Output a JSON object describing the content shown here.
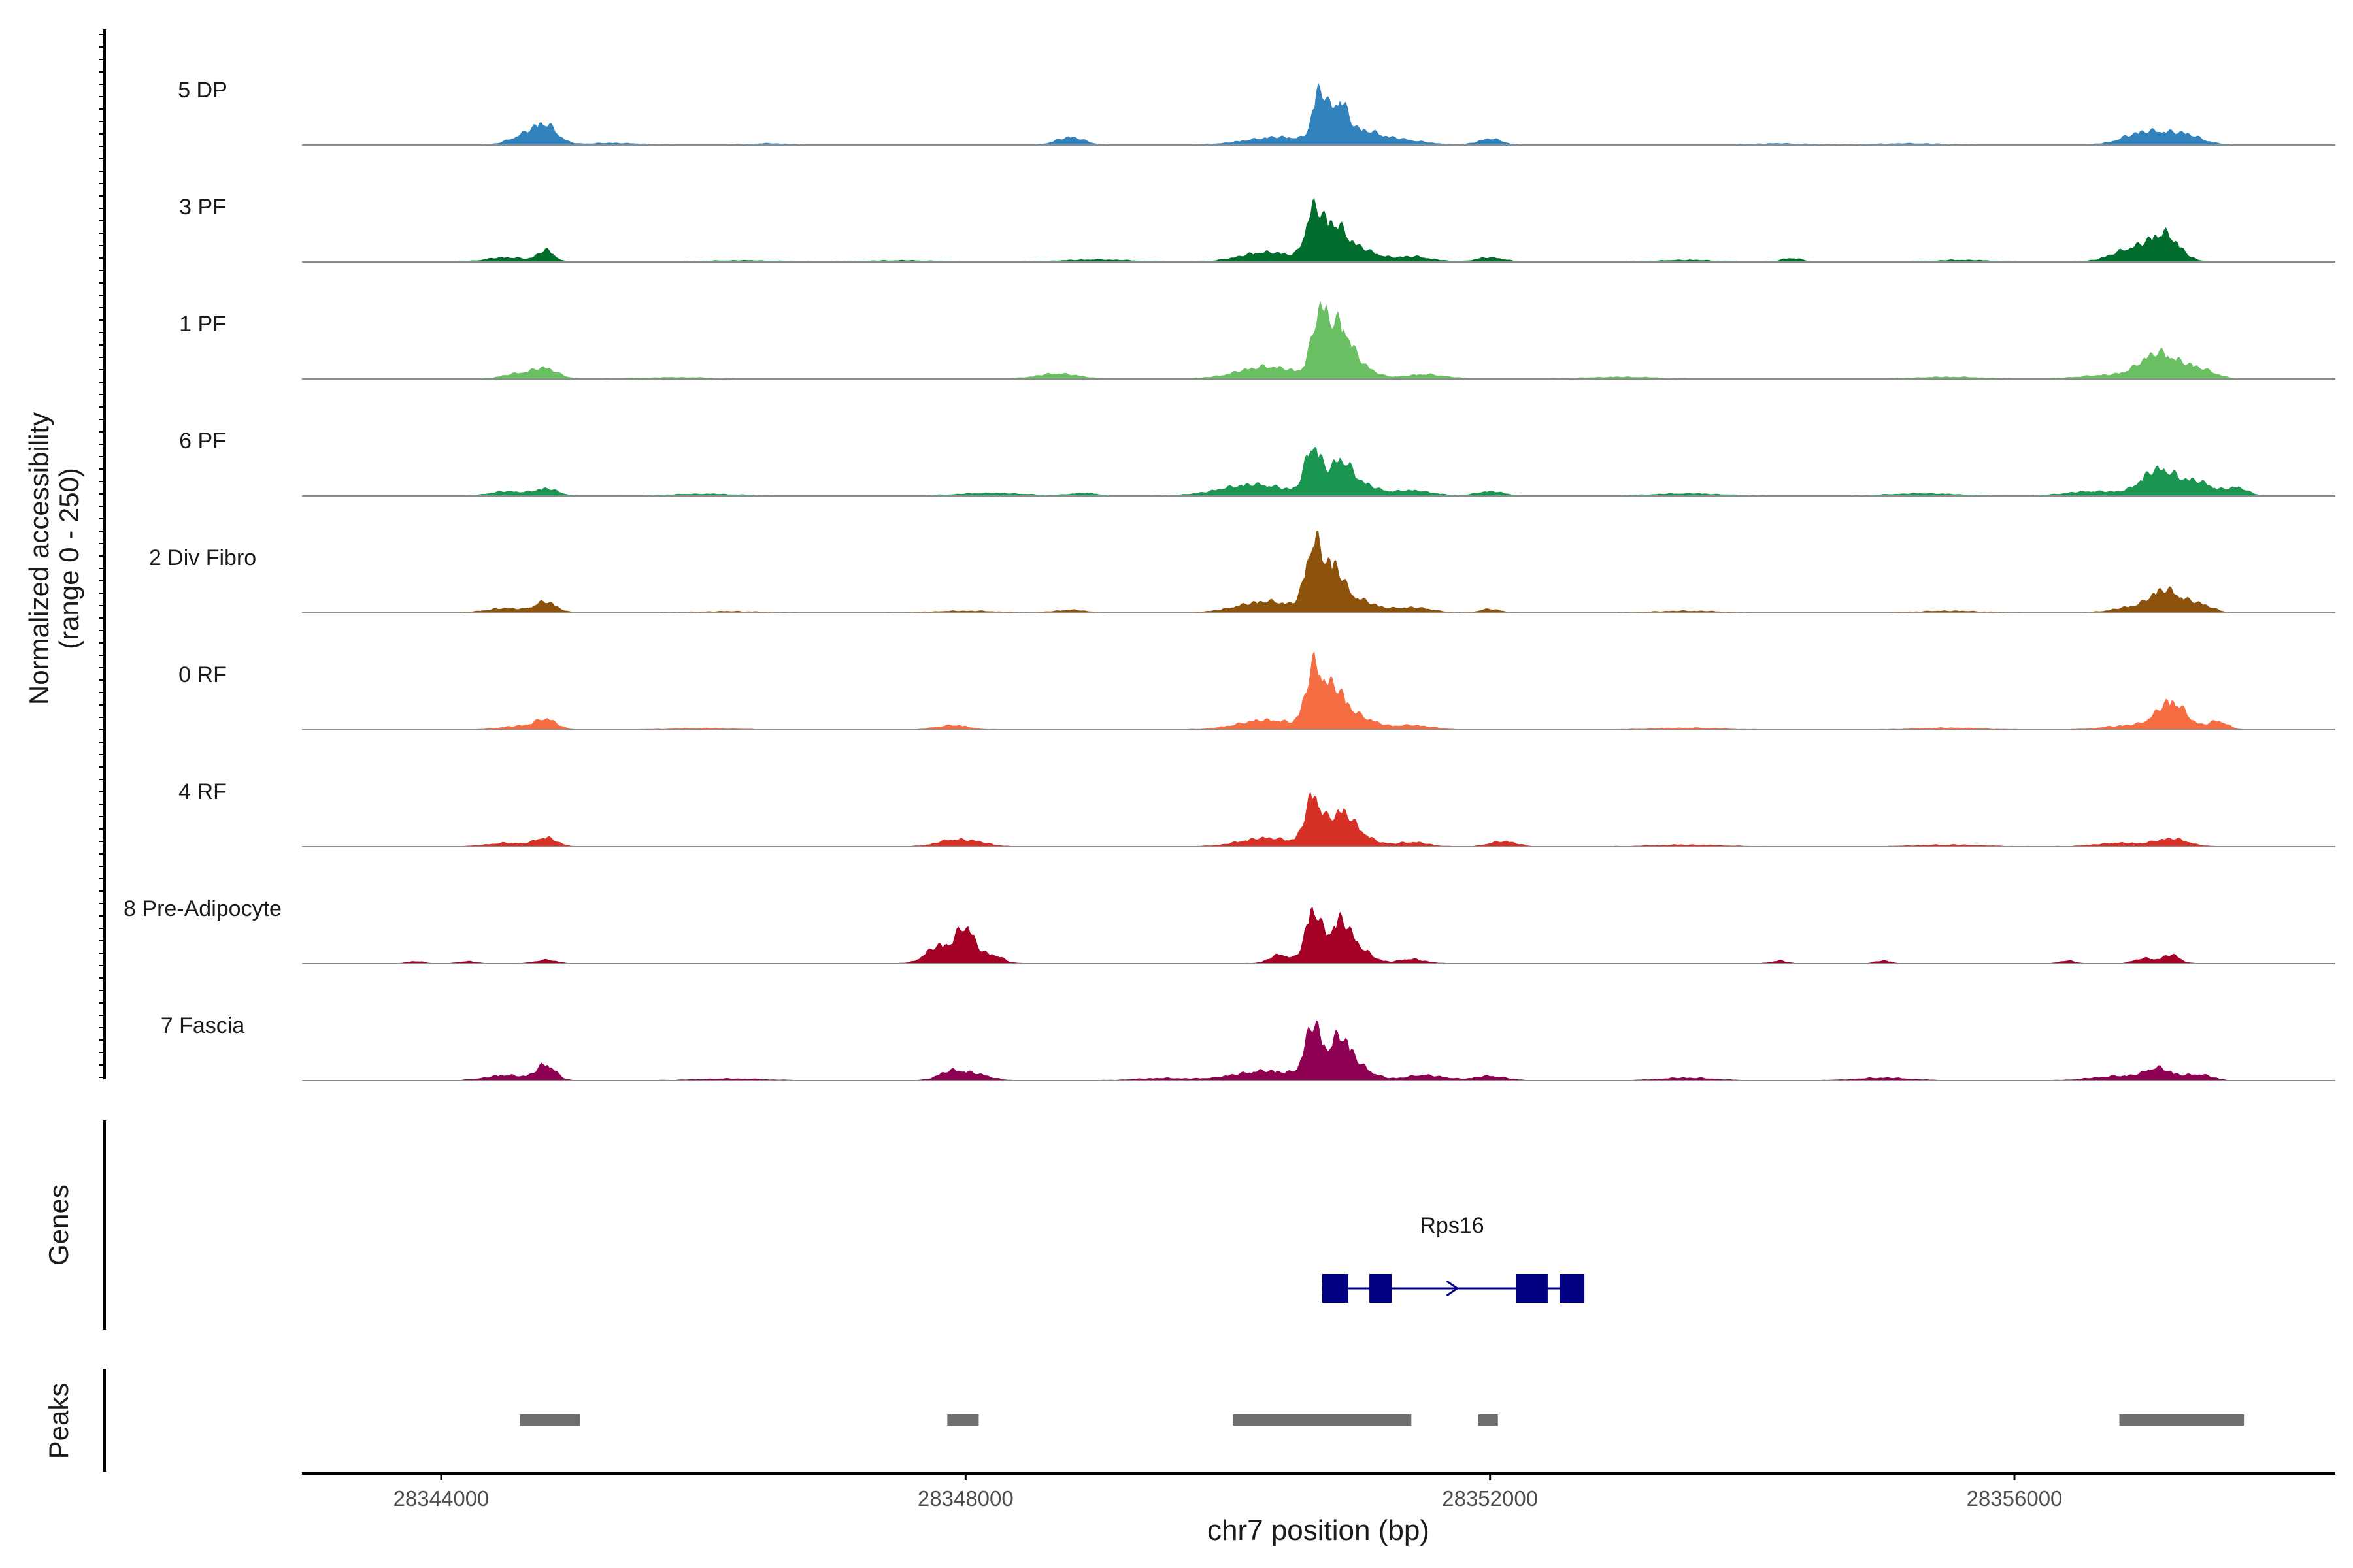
{
  "chart_data": {
    "type": "area",
    "title": "",
    "xlabel": "chr7 position (bp)",
    "ylabel": [
      "Normalized accessibility",
      "(range 0 - 250)"
    ],
    "xlim": [
      28343000,
      28358500
    ],
    "ylim": [
      0,
      250
    ],
    "x_ticks": [
      {
        "value": 28344000,
        "label": "28344000"
      },
      {
        "value": 28348000,
        "label": "28348000"
      },
      {
        "value": 28352000,
        "label": "28352000"
      },
      {
        "value": 28356000,
        "label": "28356000"
      }
    ],
    "data_range": [
      28343100,
      28357900
    ],
    "series": [
      {
        "name": "5 DP",
        "color": "#3282BD",
        "peaks": [
          [
            28344650,
            22,
            120
          ],
          [
            28344800,
            38,
            90
          ],
          [
            28345300,
            4,
            200
          ],
          [
            28346500,
            3,
            150
          ],
          [
            28348800,
            18,
            100
          ],
          [
            28350400,
            18,
            250
          ],
          [
            28350700,
            118,
            50
          ],
          [
            28350850,
            82,
            60
          ],
          [
            28351000,
            30,
            140
          ],
          [
            28351300,
            12,
            180
          ],
          [
            28352000,
            14,
            90
          ],
          [
            28354200,
            3,
            200
          ],
          [
            28355200,
            3,
            250
          ],
          [
            28357000,
            30,
            160
          ],
          [
            28357300,
            22,
            130
          ]
        ]
      },
      {
        "name": "3 PF",
        "color": "#006D2C",
        "peaks": [
          [
            28344500,
            10,
            150
          ],
          [
            28344800,
            26,
            60
          ],
          [
            28346300,
            3,
            250
          ],
          [
            28347500,
            3,
            250
          ],
          [
            28349000,
            5,
            250
          ],
          [
            28350300,
            22,
            200
          ],
          [
            28350650,
            100,
            60
          ],
          [
            28350800,
            80,
            90
          ],
          [
            28351000,
            30,
            120
          ],
          [
            28351400,
            12,
            150
          ],
          [
            28352000,
            10,
            100
          ],
          [
            28353500,
            4,
            200
          ],
          [
            28354300,
            8,
            80
          ],
          [
            28355600,
            4,
            200
          ],
          [
            28356900,
            30,
            150
          ],
          [
            28357150,
            58,
            110
          ]
        ]
      },
      {
        "name": "1 PF",
        "color": "#6BBF63",
        "peaks": [
          [
            28344600,
            12,
            120
          ],
          [
            28344800,
            22,
            90
          ],
          [
            28345800,
            3,
            250
          ],
          [
            28348700,
            12,
            150
          ],
          [
            28350300,
            28,
            220
          ],
          [
            28350700,
            140,
            60
          ],
          [
            28350850,
            110,
            80
          ],
          [
            28351000,
            30,
            110
          ],
          [
            28351500,
            10,
            150
          ],
          [
            28353000,
            4,
            250
          ],
          [
            28355500,
            4,
            250
          ],
          [
            28356700,
            8,
            200
          ],
          [
            28357100,
            58,
            140
          ],
          [
            28357400,
            22,
            120
          ]
        ]
      },
      {
        "name": "6 PF",
        "color": "#1A9650",
        "peaks": [
          [
            28344500,
            10,
            120
          ],
          [
            28344800,
            16,
            90
          ],
          [
            28346000,
            4,
            250
          ],
          [
            28348200,
            6,
            250
          ],
          [
            28348900,
            6,
            100
          ],
          [
            28350200,
            26,
            250
          ],
          [
            28350650,
            110,
            60
          ],
          [
            28350850,
            70,
            80
          ],
          [
            28351000,
            28,
            120
          ],
          [
            28351400,
            12,
            150
          ],
          [
            28352000,
            10,
            100
          ],
          [
            28353500,
            5,
            250
          ],
          [
            28355300,
            5,
            250
          ],
          [
            28356600,
            10,
            200
          ],
          [
            28357100,
            60,
            130
          ],
          [
            28357400,
            30,
            120
          ],
          [
            28357700,
            18,
            80
          ]
        ]
      },
      {
        "name": "2 Div Fibro",
        "color": "#8C510A",
        "peaks": [
          [
            28344500,
            10,
            150
          ],
          [
            28344800,
            24,
            80
          ],
          [
            28346200,
            3,
            250
          ],
          [
            28348000,
            4,
            250
          ],
          [
            28348800,
            6,
            120
          ],
          [
            28350300,
            26,
            220
          ],
          [
            28350650,
            140,
            60
          ],
          [
            28350800,
            100,
            80
          ],
          [
            28351000,
            28,
            120
          ],
          [
            28351400,
            12,
            150
          ],
          [
            28352000,
            8,
            80
          ],
          [
            28353500,
            4,
            250
          ],
          [
            28355500,
            4,
            250
          ],
          [
            28356900,
            12,
            150
          ],
          [
            28357150,
            50,
            110
          ],
          [
            28357400,
            20,
            100
          ]
        ]
      },
      {
        "name": "0 RF",
        "color": "#F46D43",
        "peaks": [
          [
            28344600,
            8,
            150
          ],
          [
            28344800,
            22,
            80
          ],
          [
            28346000,
            3,
            250
          ],
          [
            28347900,
            10,
            120
          ],
          [
            28350300,
            22,
            220
          ],
          [
            28350650,
            120,
            60
          ],
          [
            28350800,
            90,
            90
          ],
          [
            28351000,
            28,
            120
          ],
          [
            28351400,
            10,
            150
          ],
          [
            28353500,
            4,
            250
          ],
          [
            28355500,
            4,
            250
          ],
          [
            28356900,
            10,
            200
          ],
          [
            28357200,
            62,
            110
          ],
          [
            28357550,
            20,
            70
          ]
        ]
      },
      {
        "name": "4 RF",
        "color": "#D73027",
        "peaks": [
          [
            28344500,
            8,
            150
          ],
          [
            28344800,
            20,
            80
          ],
          [
            28347900,
            15,
            120
          ],
          [
            28348100,
            8,
            100
          ],
          [
            28350300,
            20,
            200
          ],
          [
            28350650,
            110,
            60
          ],
          [
            28350850,
            70,
            90
          ],
          [
            28351000,
            26,
            110
          ],
          [
            28351400,
            10,
            120
          ],
          [
            28352100,
            12,
            100
          ],
          [
            28353500,
            4,
            250
          ],
          [
            28355500,
            4,
            250
          ],
          [
            28356800,
            8,
            180
          ],
          [
            28357200,
            18,
            120
          ]
        ]
      },
      {
        "name": "8 Pre-Adipocyte",
        "color": "#A50026",
        "peaks": [
          [
            28343800,
            5,
            60
          ],
          [
            28344200,
            5,
            60
          ],
          [
            28344800,
            8,
            80
          ],
          [
            28347800,
            40,
            100
          ],
          [
            28348000,
            80,
            70
          ],
          [
            28348200,
            20,
            80
          ],
          [
            28350400,
            20,
            80
          ],
          [
            28350650,
            120,
            60
          ],
          [
            28350850,
            90,
            80
          ],
          [
            28351000,
            30,
            100
          ],
          [
            28351400,
            10,
            100
          ],
          [
            28354200,
            6,
            60
          ],
          [
            28355000,
            6,
            60
          ],
          [
            28356400,
            6,
            60
          ],
          [
            28357000,
            12,
            80
          ],
          [
            28357200,
            20,
            60
          ]
        ]
      },
      {
        "name": "7 Fascia",
        "color": "#8E0152",
        "peaks": [
          [
            28344500,
            12,
            150
          ],
          [
            28344800,
            36,
            70
          ],
          [
            28346200,
            4,
            250
          ],
          [
            28347900,
            22,
            100
          ],
          [
            28348100,
            12,
            100
          ],
          [
            28349500,
            5,
            200
          ],
          [
            28350300,
            22,
            250
          ],
          [
            28350650,
            120,
            60
          ],
          [
            28350850,
            90,
            80
          ],
          [
            28351000,
            28,
            110
          ],
          [
            28351500,
            12,
            150
          ],
          [
            28352000,
            10,
            120
          ],
          [
            28353500,
            6,
            200
          ],
          [
            28355000,
            6,
            200
          ],
          [
            28356800,
            10,
            200
          ],
          [
            28357100,
            26,
            100
          ],
          [
            28357400,
            14,
            100
          ]
        ]
      }
    ],
    "genes": {
      "label": "Genes",
      "name": "Rps16",
      "color": "#000080",
      "start": 28350720,
      "end": 28352700,
      "strand": "+",
      "exons": [
        [
          28350720,
          28350920
        ],
        [
          28351080,
          28351250
        ],
        [
          28352200,
          28352440
        ],
        [
          28352530,
          28352720
        ]
      ]
    },
    "peaks_track": {
      "label": "Peaks",
      "color": "#6E6E6E",
      "regions": [
        [
          28344600,
          28345060
        ],
        [
          28347860,
          28348100
        ],
        [
          28350040,
          28351400
        ],
        [
          28351910,
          28352060
        ],
        [
          28356800,
          28357750
        ]
      ]
    }
  }
}
